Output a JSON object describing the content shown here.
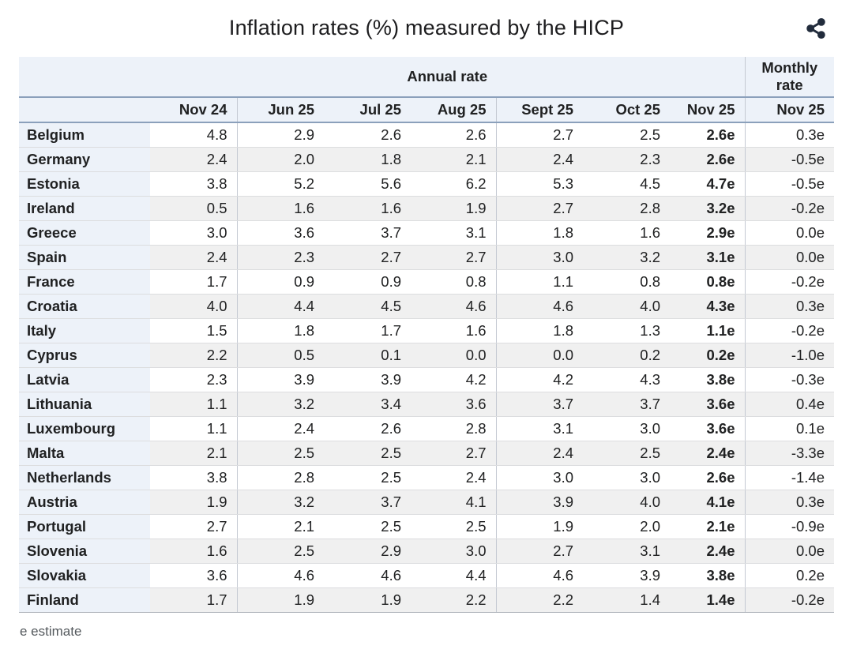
{
  "colors": {
    "header_bg": "#edf2f9",
    "stripe_bg": "#f0f0f0",
    "accent_line": "#8ba0bb",
    "column_separator": "#c4c9d2",
    "text": "#202122",
    "footnote_text": "#54595d",
    "share_icon": "#222c3c"
  },
  "icons": {
    "share": "share-icon"
  },
  "chart_data": {
    "type": "table",
    "title": "Inflation rates (%) measured by the HICP",
    "unit": "%",
    "group_headers": {
      "annual": "Annual rate",
      "monthly": "Monthly rate"
    },
    "annual_columns": [
      "Nov 24",
      "Jun 25",
      "Jul 25",
      "Aug 25",
      "Sept 25",
      "Oct 25",
      "Nov 25"
    ],
    "monthly_column": "Nov 25",
    "rows": [
      {
        "country": "Belgium",
        "annual": [
          "4.8",
          "2.9",
          "2.6",
          "2.6",
          "2.7",
          "2.5",
          "2.6e"
        ],
        "monthly": "0.3e"
      },
      {
        "country": "Germany",
        "annual": [
          "2.4",
          "2.0",
          "1.8",
          "2.1",
          "2.4",
          "2.3",
          "2.6e"
        ],
        "monthly": "-0.5e"
      },
      {
        "country": "Estonia",
        "annual": [
          "3.8",
          "5.2",
          "5.6",
          "6.2",
          "5.3",
          "4.5",
          "4.7e"
        ],
        "monthly": "-0.5e"
      },
      {
        "country": "Ireland",
        "annual": [
          "0.5",
          "1.6",
          "1.6",
          "1.9",
          "2.7",
          "2.8",
          "3.2e"
        ],
        "monthly": "-0.2e"
      },
      {
        "country": "Greece",
        "annual": [
          "3.0",
          "3.6",
          "3.7",
          "3.1",
          "1.8",
          "1.6",
          "2.9e"
        ],
        "monthly": "0.0e"
      },
      {
        "country": "Spain",
        "annual": [
          "2.4",
          "2.3",
          "2.7",
          "2.7",
          "3.0",
          "3.2",
          "3.1e"
        ],
        "monthly": "0.0e"
      },
      {
        "country": "France",
        "annual": [
          "1.7",
          "0.9",
          "0.9",
          "0.8",
          "1.1",
          "0.8",
          "0.8e"
        ],
        "monthly": "-0.2e"
      },
      {
        "country": "Croatia",
        "annual": [
          "4.0",
          "4.4",
          "4.5",
          "4.6",
          "4.6",
          "4.0",
          "4.3e"
        ],
        "monthly": "0.3e"
      },
      {
        "country": "Italy",
        "annual": [
          "1.5",
          "1.8",
          "1.7",
          "1.6",
          "1.8",
          "1.3",
          "1.1e"
        ],
        "monthly": "-0.2e"
      },
      {
        "country": "Cyprus",
        "annual": [
          "2.2",
          "0.5",
          "0.1",
          "0.0",
          "0.0",
          "0.2",
          "0.2e"
        ],
        "monthly": "-1.0e"
      },
      {
        "country": "Latvia",
        "annual": [
          "2.3",
          "3.9",
          "3.9",
          "4.2",
          "4.2",
          "4.3",
          "3.8e"
        ],
        "monthly": "-0.3e"
      },
      {
        "country": "Lithuania",
        "annual": [
          "1.1",
          "3.2",
          "3.4",
          "3.6",
          "3.7",
          "3.7",
          "3.6e"
        ],
        "monthly": "0.4e"
      },
      {
        "country": "Luxembourg",
        "annual": [
          "1.1",
          "2.4",
          "2.6",
          "2.8",
          "3.1",
          "3.0",
          "3.6e"
        ],
        "monthly": "0.1e"
      },
      {
        "country": "Malta",
        "annual": [
          "2.1",
          "2.5",
          "2.5",
          "2.7",
          "2.4",
          "2.5",
          "2.4e"
        ],
        "monthly": "-3.3e"
      },
      {
        "country": "Netherlands",
        "annual": [
          "3.8",
          "2.8",
          "2.5",
          "2.4",
          "3.0",
          "3.0",
          "2.6e"
        ],
        "monthly": "-1.4e"
      },
      {
        "country": "Austria",
        "annual": [
          "1.9",
          "3.2",
          "3.7",
          "4.1",
          "3.9",
          "4.0",
          "4.1e"
        ],
        "monthly": "0.3e"
      },
      {
        "country": "Portugal",
        "annual": [
          "2.7",
          "2.1",
          "2.5",
          "2.5",
          "1.9",
          "2.0",
          "2.1e"
        ],
        "monthly": "-0.9e"
      },
      {
        "country": "Slovenia",
        "annual": [
          "1.6",
          "2.5",
          "2.9",
          "3.0",
          "2.7",
          "3.1",
          "2.4e"
        ],
        "monthly": "0.0e"
      },
      {
        "country": "Slovakia",
        "annual": [
          "3.6",
          "4.6",
          "4.6",
          "4.4",
          "4.6",
          "3.9",
          "3.8e"
        ],
        "monthly": "0.2e"
      },
      {
        "country": "Finland",
        "annual": [
          "1.7",
          "1.9",
          "1.9",
          "2.2",
          "2.2",
          "1.4",
          "1.4e"
        ],
        "monthly": "-0.2e"
      }
    ],
    "footnote": "e estimate"
  }
}
